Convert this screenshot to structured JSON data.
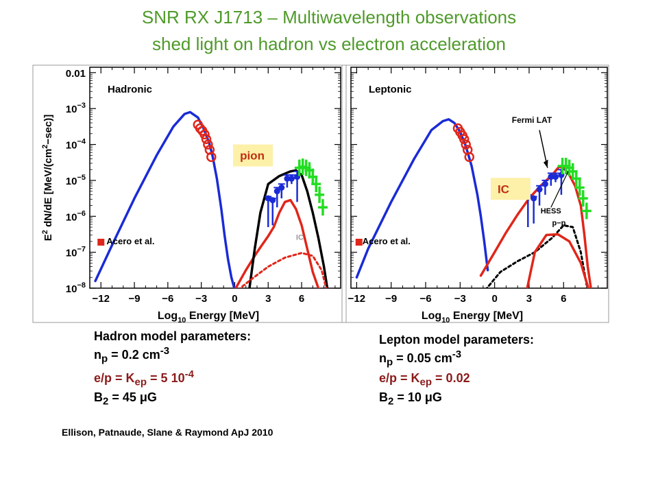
{
  "slide": {
    "title_line1": "SNR RX J1713 – Multiwavelength observations",
    "title_line2": "shed light on hadron vs electron acceleration",
    "citation": "Ellison, Patnaude, Slane & Raymond ApJ 2010"
  },
  "hadron_params": {
    "heading": "Hadron model parameters:",
    "np_base": "n",
    "np_sub": "p",
    "np_value": " = 0.2 cm",
    "np_sup": "-3",
    "kep_base": "e/p = K",
    "kep_sub": "ep",
    "kep_value": " = 5 10",
    "kep_sup": "-4",
    "b_base": "B",
    "b_sub": "2",
    "b_value": " = 45 μG"
  },
  "lepton_params": {
    "heading": "Lepton model parameters:",
    "np_base": "n",
    "np_sub": "p",
    "np_value": " = 0.05 cm",
    "np_sup": "-3",
    "kep_base": "e/p = K",
    "kep_sub": "ep",
    "kep_value": " = 0.02",
    "b_base": "B",
    "b_sub": "2",
    "b_value": " = 10 μG"
  },
  "colors": {
    "synchrotron": "#1a2bd6",
    "pion_ic": "#e0261a",
    "total": "#000000",
    "radio": "#e0261a",
    "xray": "#e0261a",
    "fermi": "#1a2bd6",
    "hess": "#22dd22",
    "callout_bg": "#fdf0a8",
    "callout_text": "#c03010",
    "title": "#4f9a2a"
  },
  "chart_data": [
    {
      "type": "line",
      "panel_label": "Hadronic",
      "xlabel_base": "Log",
      "xlabel_sub": "10",
      "xlabel_rest": " Energy [MeV]",
      "ylabel_base": "E",
      "ylabel_sup1": "2",
      "ylabel_mid": " dN/dE [MeV/(cm",
      "ylabel_sup2": "2",
      "ylabel_end": "−sec)]",
      "xlim": [
        -13,
        9.5
      ],
      "ylim": [
        -8,
        -1.85
      ],
      "ylog": true,
      "x_ticks": [
        -12,
        -9,
        -6,
        -3,
        0,
        3,
        6
      ],
      "x_tick_labels": [
        "−12",
        "−9",
        "−6",
        "−3",
        "0",
        "3",
        "6"
      ],
      "y_ticks": [
        -2,
        -3,
        -4,
        -5,
        -6,
        -7,
        -8
      ],
      "y_tick_labels": [
        {
          "base": "0.01",
          "exp": ""
        },
        {
          "base": "10",
          "exp": "−3"
        },
        {
          "base": "10",
          "exp": "−4"
        },
        {
          "base": "10",
          "exp": "−5"
        },
        {
          "base": "10",
          "exp": "−6"
        },
        {
          "base": "10",
          "exp": "−7"
        },
        {
          "base": "10",
          "exp": "−8"
        }
      ],
      "annotations": [
        {
          "text": "Acero et al.",
          "x": -11.5,
          "y": -6.78,
          "size": 13
        },
        {
          "text": "IC",
          "x": 5.5,
          "y": -6.65,
          "size": 11,
          "color": "#999999"
        }
      ],
      "callouts": [
        {
          "text": "pion",
          "x": 0.1,
          "y": -4.42
        }
      ],
      "series": [
        {
          "role": "synchrotron",
          "style": "solid",
          "x": [
            -12.5,
            -11,
            -9,
            -7,
            -5.5,
            -4.5,
            -4,
            -3.3,
            -2.8,
            -2.3,
            -2,
            -1.6,
            -1.2,
            -0.9,
            -0.6,
            -0.3,
            0
          ],
          "y": [
            -7.8,
            -6.8,
            -5.5,
            -4.3,
            -3.5,
            -3.15,
            -3.1,
            -3.25,
            -3.55,
            -3.95,
            -4.3,
            -4.95,
            -5.8,
            -6.55,
            -7.2,
            -7.7,
            -8.05
          ]
        },
        {
          "role": "pion",
          "style": "solid",
          "x": [
            0,
            1,
            2,
            3,
            3.5,
            4,
            4.5,
            5,
            5.5,
            6,
            6.5,
            7,
            7.5,
            8
          ],
          "y": [
            -8.05,
            -7.5,
            -7.0,
            -6.55,
            -6.3,
            -5.9,
            -5.6,
            -5.55,
            -5.8,
            -6.25,
            -6.9,
            -7.55,
            -8.0,
            -8.1
          ]
        },
        {
          "role": "total",
          "style": "solid",
          "x": [
            1.3,
            1.8,
            2.3,
            3,
            4,
            5,
            5.5,
            6,
            6.5,
            7,
            7.5,
            8,
            8.3
          ],
          "y": [
            -8.05,
            -6.9,
            -5.9,
            -5.1,
            -4.88,
            -4.75,
            -4.72,
            -4.85,
            -5.3,
            -5.9,
            -6.6,
            -7.4,
            -8.0
          ]
        },
        {
          "role": "ic",
          "style": "dotted",
          "x": [
            0.3,
            1.5,
            3,
            4.5,
            6,
            7,
            7.8,
            8.2
          ],
          "y": [
            -8.05,
            -7.75,
            -7.4,
            -7.15,
            -7.02,
            -7.1,
            -7.5,
            -8.0
          ]
        }
      ],
      "observations": [
        {
          "role": "radio",
          "marker": "square",
          "points": [
            {
              "x": -12,
              "y": -6.72
            }
          ]
        },
        {
          "role": "xray",
          "marker": "circle-open",
          "points": [
            {
              "x": -3.3,
              "y": -3.45
            },
            {
              "x": -3.1,
              "y": -3.55
            },
            {
              "x": -2.9,
              "y": -3.62
            },
            {
              "x": -2.7,
              "y": -3.72
            },
            {
              "x": -2.55,
              "y": -3.85
            },
            {
              "x": -2.4,
              "y": -4.0
            },
            {
              "x": -2.25,
              "y": -4.15
            },
            {
              "x": -2.1,
              "y": -4.35
            }
          ]
        },
        {
          "role": "fermi",
          "marker": "circle-errbar",
          "points": [
            {
              "x": 3,
              "y": -5.5,
              "lo": -6.3,
              "hi": -5.45
            },
            {
              "x": 3.4,
              "y": -5.55,
              "lo": -6.25,
              "hi": -5.5
            },
            {
              "x": 3.8,
              "y": -5.3,
              "lo": -5.75,
              "hi": -5.2
            },
            {
              "x": 4.2,
              "y": -5.2,
              "lo": -5.5,
              "hi": -5.1
            },
            {
              "x": 4.7,
              "y": -4.95,
              "lo": -5.2,
              "hi": -4.85
            },
            {
              "x": 5.1,
              "y": -4.95,
              "lo": -5.1,
              "hi": -4.85
            },
            {
              "x": 5.6,
              "y": -4.9,
              "lo": -5.6,
              "hi": -4.75
            }
          ]
        },
        {
          "role": "hess",
          "marker": "cross",
          "points": [
            {
              "x": 5.8,
              "y": -4.65
            },
            {
              "x": 6.1,
              "y": -4.62
            },
            {
              "x": 6.4,
              "y": -4.65
            },
            {
              "x": 6.7,
              "y": -4.72
            },
            {
              "x": 7.0,
              "y": -4.9
            },
            {
              "x": 7.3,
              "y": -5.1
            },
            {
              "x": 7.6,
              "y": -5.4
            },
            {
              "x": 7.9,
              "y": -5.75
            }
          ]
        }
      ]
    },
    {
      "type": "line",
      "panel_label": "Leptonic",
      "xlabel_base": "Log",
      "xlabel_sub": "10",
      "xlabel_rest": " Energy [MeV]",
      "xlim": [
        -12.5,
        9.8
      ],
      "ylim": [
        -8,
        -1.85
      ],
      "ylog": true,
      "x_ticks": [
        -12,
        -9,
        -6,
        -3,
        0,
        3,
        6
      ],
      "x_tick_labels": [
        "−12",
        "−9",
        "−6",
        "−3",
        "0",
        "3",
        "6"
      ],
      "annotations": [
        {
          "text": "Acero et al.",
          "x": -11.5,
          "y": -6.78,
          "size": 13
        },
        {
          "text": "Fermi LAT",
          "x": 1.5,
          "y": -3.4,
          "size": 12
        },
        {
          "text": "HESS",
          "x": 4.0,
          "y": -5.92,
          "size": 11
        },
        {
          "text": "p−p",
          "x": 5.0,
          "y": -6.25,
          "size": 11
        }
      ],
      "callouts": [
        {
          "text": "IC",
          "x": -0.1,
          "y": -5.35
        }
      ],
      "series": [
        {
          "role": "synchrotron",
          "style": "solid",
          "x": [
            -12,
            -11,
            -9,
            -7,
            -5.5,
            -4.5,
            -4,
            -3.5,
            -3,
            -2.5,
            -2,
            -1.5,
            -1.2,
            -0.9,
            -0.6
          ],
          "y": [
            -7.7,
            -6.9,
            -5.6,
            -4.4,
            -3.6,
            -3.35,
            -3.3,
            -3.4,
            -3.65,
            -4.05,
            -4.6,
            -5.4,
            -6.0,
            -6.7,
            -7.5
          ]
        },
        {
          "role": "ic",
          "style": "solid",
          "x": [
            -1.2,
            0,
            1,
            2,
            3,
            4,
            5,
            5.6,
            6,
            6.5,
            7,
            7.5,
            7.8,
            8.1,
            8.4
          ],
          "y": [
            -7.65,
            -7.0,
            -6.45,
            -5.95,
            -5.5,
            -5.15,
            -4.85,
            -4.62,
            -4.65,
            -4.85,
            -5.15,
            -5.7,
            -6.5,
            -7.4,
            -8.05
          ]
        },
        {
          "role": "total",
          "style": "dotted",
          "x": [
            -0.8,
            0.5,
            2,
            3.5,
            5,
            6,
            6.8,
            7.5,
            8
          ],
          "y": [
            -8.05,
            -7.55,
            -7.25,
            -7.0,
            -6.6,
            -6.25,
            -6.3,
            -7.0,
            -7.9
          ]
        },
        {
          "role": "pion",
          "style": "solid",
          "x": [
            2.8,
            3.5,
            4.5,
            5.5,
            6.5,
            7.5,
            8.2
          ],
          "y": [
            -8.05,
            -7.0,
            -6.52,
            -6.5,
            -6.7,
            -7.3,
            -8.05
          ]
        }
      ],
      "observations": [
        {
          "role": "radio",
          "marker": "square",
          "points": [
            {
              "x": -11.8,
              "y": -6.72
            }
          ]
        },
        {
          "role": "xray",
          "marker": "circle-open",
          "points": [
            {
              "x": -3.2,
              "y": -3.55
            },
            {
              "x": -3.0,
              "y": -3.65
            },
            {
              "x": -2.8,
              "y": -3.75
            },
            {
              "x": -2.65,
              "y": -3.85
            },
            {
              "x": -2.5,
              "y": -4.0
            },
            {
              "x": -2.35,
              "y": -4.15
            },
            {
              "x": -2.2,
              "y": -4.35
            }
          ]
        },
        {
          "role": "fermi",
          "marker": "circle-errbar",
          "points": [
            {
              "x": 2.9,
              "y": -5.45,
              "lo": -6.3,
              "hi": -5.4
            },
            {
              "x": 3.4,
              "y": -5.5,
              "lo": -6.2,
              "hi": -5.45
            },
            {
              "x": 3.9,
              "y": -5.25,
              "lo": -5.7,
              "hi": -5.15
            },
            {
              "x": 4.4,
              "y": -5.1,
              "lo": -5.4,
              "hi": -5.0
            },
            {
              "x": 4.9,
              "y": -4.9,
              "lo": -5.15,
              "hi": -4.8
            },
            {
              "x": 5.3,
              "y": -4.9,
              "lo": -5.05,
              "hi": -4.8
            },
            {
              "x": 5.8,
              "y": -4.85,
              "lo": -5.4,
              "hi": -4.7
            }
          ]
        },
        {
          "role": "hess",
          "marker": "cross",
          "points": [
            {
              "x": 5.9,
              "y": -4.6
            },
            {
              "x": 6.2,
              "y": -4.6
            },
            {
              "x": 6.5,
              "y": -4.65
            },
            {
              "x": 6.8,
              "y": -4.75
            },
            {
              "x": 7.1,
              "y": -4.95
            },
            {
              "x": 7.4,
              "y": -5.2
            },
            {
              "x": 7.7,
              "y": -5.5
            },
            {
              "x": 8.0,
              "y": -5.85
            }
          ]
        }
      ]
    }
  ]
}
